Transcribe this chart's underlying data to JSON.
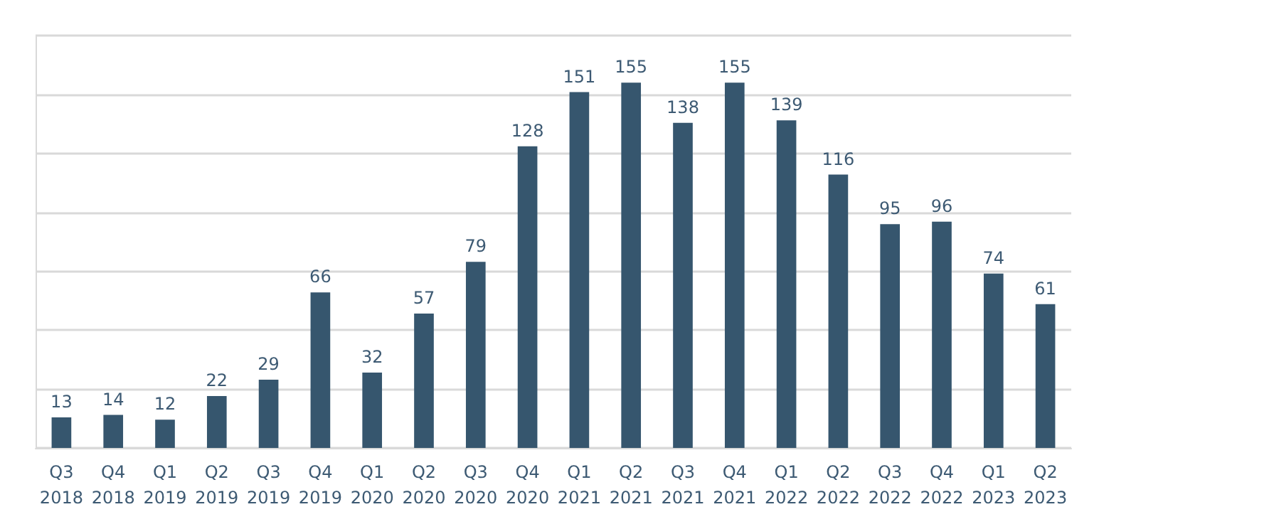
{
  "chart_data": {
    "type": "bar",
    "categories": [
      "Q3\n2018",
      "Q4\n2018",
      "Q1\n2019",
      "Q2\n2019",
      "Q3\n2019",
      "Q4\n2019",
      "Q1\n2020",
      "Q2\n2020",
      "Q3\n2020",
      "Q4\n2020",
      "Q1\n2021",
      "Q2\n2021",
      "Q3\n2021",
      "Q4\n2021",
      "Q1\n2022",
      "Q2\n2022",
      "Q3\n2022",
      "Q4\n2022",
      "Q1\n2023",
      "Q2\n2023"
    ],
    "values": [
      13,
      14,
      12,
      22,
      29,
      66,
      32,
      57,
      79,
      128,
      151,
      155,
      138,
      155,
      139,
      116,
      95,
      96,
      74,
      61
    ],
    "color": "#36566e",
    "ylim": [
      0,
      175
    ],
    "yticks": [
      {
        "value": 0,
        "label": null
      },
      {
        "value": 25,
        "label": null
      },
      {
        "value": 50,
        "label": null
      },
      {
        "value": 75,
        "label": null
      },
      {
        "value": 100,
        "label": null
      },
      {
        "value": 125,
        "label": null
      },
      {
        "value": 150,
        "label": null
      },
      {
        "value": 175,
        "label": null
      }
    ],
    "grid": "y",
    "tick_labels": "x",
    "data_labels": true
  }
}
